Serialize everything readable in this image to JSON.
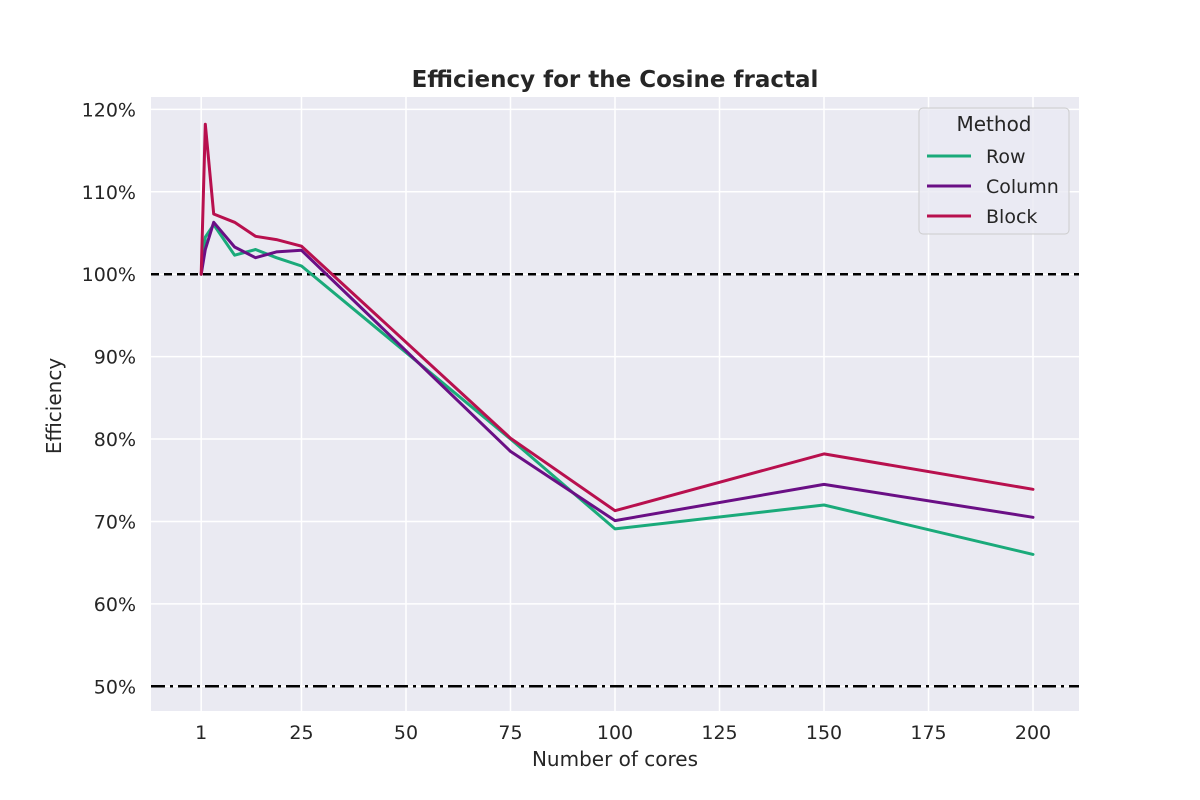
{
  "chart_data": {
    "type": "line",
    "title": "Efficiency for the Cosine fractal",
    "xlabel": "Number of cores",
    "ylabel": "Efficiency",
    "xlim": [
      -11,
      211
    ],
    "ylim": [
      47,
      121.5
    ],
    "x_ticks": [
      1,
      25,
      50,
      75,
      100,
      125,
      150,
      175,
      200
    ],
    "y_ticks": [
      50,
      60,
      70,
      80,
      90,
      100,
      110,
      120
    ],
    "y_tick_labels": [
      "50%",
      "60%",
      "70%",
      "80%",
      "90%",
      "100%",
      "110%",
      "120%"
    ],
    "grid": true,
    "reference_lines": [
      {
        "y": 100,
        "style": "dashed",
        "color": "#000000"
      },
      {
        "y": 50,
        "style": "dash-dot",
        "color": "#000000"
      }
    ],
    "legend": {
      "title": "Method",
      "position": "top-right"
    },
    "series": [
      {
        "name": "Row",
        "color": "#1aaa7a",
        "x": [
          1,
          2,
          4,
          9,
          14,
          19,
          25,
          75,
          100,
          150,
          200
        ],
        "y": [
          100,
          104.5,
          106,
          102.3,
          103,
          102,
          101,
          80,
          69.1,
          72,
          66
        ]
      },
      {
        "name": "Column",
        "color": "#6a0f85",
        "x": [
          1,
          2,
          4,
          9,
          14,
          19,
          25,
          75,
          100,
          150,
          200
        ],
        "y": [
          100,
          103,
          106.3,
          103.3,
          102,
          102.7,
          102.9,
          78.5,
          70.1,
          74.5,
          70.5
        ]
      },
      {
        "name": "Block",
        "color": "#b8104e",
        "x": [
          1,
          2,
          4,
          9,
          14,
          19,
          25,
          75,
          100,
          150,
          200
        ],
        "y": [
          100,
          118.2,
          107.3,
          106.3,
          104.6,
          104.2,
          103.4,
          80.1,
          71.3,
          78.2,
          73.9
        ]
      }
    ]
  }
}
